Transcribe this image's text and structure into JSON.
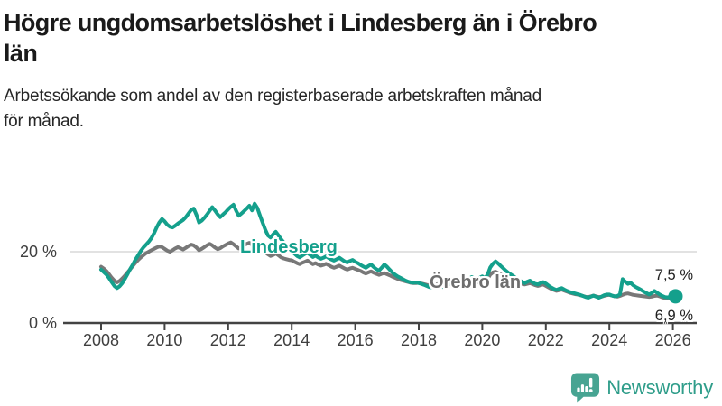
{
  "header": {
    "title_line1": "Högre ungdomsarbetslöshet i Lindesberg än i Örebro",
    "title_line2": "län",
    "subtitle_line1": "Arbetssökande som andel av den registerbaserade arbetskraften månad",
    "subtitle_line2": "för månad."
  },
  "footer": {
    "brand": "Newsworthy",
    "brand_color": "#2f9d8a",
    "icon_color": "#47a492",
    "icon_name": "newsworthy-speech-bubble-barchart-icon"
  },
  "chart_data": {
    "type": "line",
    "unit": "%",
    "frequency": "monthly",
    "start": "2008-01",
    "end": "2026-02",
    "grid": "y-gridline at 20% only",
    "axis_color": "#434343",
    "grid_color": "#d9d9d9",
    "ylim": [
      0,
      35
    ],
    "x_ticks": [
      "2008",
      "2010",
      "2012",
      "2014",
      "2016",
      "2018",
      "2020",
      "2022",
      "2024",
      "2026"
    ],
    "y_ticks": [
      {
        "value": 0,
        "label": "0 %"
      },
      {
        "value": 20,
        "label": "20 %"
      }
    ],
    "legend_position": "labels inline on lines",
    "series": [
      {
        "name": "Lindesberg",
        "label": "Lindesberg",
        "color": "#14a08c",
        "end_value": 7.5,
        "end_label": "7,5 %",
        "end_marker": "dot",
        "values": [
          15.0,
          14.3,
          13.6,
          12.6,
          11.5,
          10.4,
          9.8,
          10.3,
          11.2,
          12.4,
          13.7,
          15.2,
          16.4,
          17.8,
          19.0,
          20.2,
          21.2,
          22.0,
          22.8,
          23.8,
          25.2,
          26.8,
          28.2,
          29.2,
          28.5,
          27.6,
          27.0,
          26.8,
          27.3,
          27.9,
          28.4,
          28.9,
          29.7,
          30.7,
          31.7,
          32.1,
          30.4,
          28.2,
          28.7,
          29.5,
          30.4,
          31.5,
          32.5,
          31.6,
          30.5,
          29.7,
          30.4,
          31.1,
          31.9,
          32.6,
          33.2,
          31.5,
          30.1,
          30.7,
          31.4,
          32.1,
          32.9,
          31.6,
          33.5,
          32.3,
          30.2,
          28.2,
          26.2,
          24.6,
          24.0,
          24.9,
          25.6,
          24.6,
          23.5,
          22.6,
          21.8,
          21.0,
          20.3,
          19.5,
          18.8,
          18.4,
          18.9,
          19.4,
          19.7,
          19.1,
          18.5,
          18.9,
          18.4,
          18.0,
          18.3,
          18.7,
          18.2,
          17.8,
          17.5,
          17.9,
          18.3,
          17.8,
          17.3,
          17.0,
          17.4,
          17.7,
          17.2,
          16.8,
          16.3,
          15.9,
          15.5,
          16.0,
          16.4,
          15.7,
          15.1,
          14.7,
          15.5,
          16.4,
          15.8,
          15.0,
          14.2,
          13.6,
          13.1,
          12.7,
          12.3,
          11.9,
          11.6,
          11.4,
          11.3,
          11.4,
          11.2,
          11.0,
          10.7,
          10.4,
          10.1,
          10.0,
          10.3,
          10.6,
          10.3,
          10.1,
          10.5,
          10.9,
          11.1,
          11.5,
          11.9,
          11.5,
          11.2,
          11.7,
          12.1,
          12.5,
          12.9,
          12.5,
          12.1,
          12.7,
          13.1,
          12.5,
          13.6,
          15.6,
          16.6,
          17.3,
          16.7,
          16.0,
          15.3,
          14.6,
          14.0,
          13.5,
          13.0,
          12.5,
          12.0,
          11.6,
          11.2,
          11.6,
          11.9,
          11.4,
          11.0,
          10.8,
          11.2,
          11.5,
          11.1,
          10.5,
          10.0,
          9.6,
          9.3,
          9.6,
          9.8,
          9.4,
          9.0,
          8.7,
          8.5,
          8.3,
          8.1,
          7.9,
          7.6,
          7.3,
          7.1,
          7.4,
          7.7,
          7.4,
          7.1,
          7.4,
          7.8,
          8.0,
          8.0,
          7.7,
          7.5,
          7.6,
          8.0,
          12.3,
          11.6,
          11.0,
          11.3,
          10.6,
          10.1,
          9.7,
          9.3,
          8.8,
          8.4,
          8.0,
          8.4,
          9.0,
          8.5,
          8.0,
          7.6,
          7.3,
          7.2,
          7.4,
          7.6,
          7.5
        ]
      },
      {
        "name": "Örebro län",
        "label": "Örebro län",
        "color": "#787878",
        "end_value": 6.9,
        "end_label": "6,9 %",
        "end_marker": "none",
        "values": [
          15.8,
          15.3,
          14.6,
          13.7,
          12.7,
          11.9,
          11.4,
          11.8,
          12.5,
          13.3,
          14.2,
          15.1,
          16.0,
          16.9,
          17.7,
          18.4,
          19.0,
          19.6,
          20.0,
          20.4,
          20.8,
          21.2,
          21.5,
          21.3,
          20.8,
          20.3,
          20.0,
          20.4,
          20.9,
          21.3,
          21.0,
          20.6,
          21.1,
          21.6,
          22.0,
          21.8,
          21.2,
          20.4,
          20.8,
          21.3,
          21.8,
          22.2,
          21.8,
          21.2,
          20.7,
          21.0,
          21.5,
          21.9,
          22.3,
          22.6,
          22.1,
          21.5,
          20.9,
          21.3,
          21.8,
          22.2,
          22.5,
          21.9,
          21.4,
          21.7,
          21.2,
          20.6,
          19.9,
          19.3,
          18.8,
          19.1,
          19.5,
          19.0,
          18.4,
          18.1,
          17.9,
          17.7,
          17.6,
          17.2,
          16.8,
          16.5,
          16.9,
          17.2,
          17.5,
          17.0,
          16.5,
          16.8,
          16.4,
          16.1,
          16.3,
          16.6,
          16.2,
          15.8,
          15.5,
          15.8,
          16.1,
          15.7,
          15.3,
          15.0,
          15.3,
          15.5,
          15.2,
          14.9,
          14.6,
          14.2,
          13.9,
          14.2,
          14.5,
          14.1,
          13.8,
          13.5,
          13.8,
          14.0,
          13.7,
          13.4,
          13.0,
          12.7,
          12.4,
          12.1,
          11.9,
          11.7,
          11.5,
          11.3,
          11.2,
          11.2,
          11.3,
          11.1,
          10.9,
          10.7,
          10.6,
          10.5,
          10.7,
          10.9,
          10.7,
          10.5,
          10.7,
          10.9,
          11.0,
          11.2,
          11.4,
          11.2,
          11.0,
          11.3,
          11.5,
          11.7,
          11.8,
          11.6,
          11.4,
          11.6,
          11.8,
          11.5,
          12.3,
          13.6,
          14.2,
          14.4,
          14.0,
          13.6,
          13.2,
          12.8,
          12.4,
          12.1,
          11.8,
          11.5,
          11.2,
          11.0,
          10.8,
          11.0,
          11.2,
          10.9,
          10.6,
          10.4,
          10.6,
          10.8,
          10.4,
          10.0,
          9.6,
          9.3,
          9.0,
          9.2,
          9.4,
          9.1,
          8.8,
          8.5,
          8.3,
          8.1,
          8.0,
          7.8,
          7.6,
          7.4,
          7.3,
          7.5,
          7.7,
          7.5,
          7.3,
          7.4,
          7.6,
          7.8,
          7.9,
          7.7,
          7.5,
          7.4,
          7.6,
          7.9,
          8.2,
          8.3,
          8.1,
          7.9,
          7.8,
          7.7,
          7.6,
          7.5,
          7.4,
          7.3,
          7.4,
          7.6,
          7.7,
          7.5,
          7.2,
          7.0,
          6.9,
          6.8,
          6.9,
          6.9
        ]
      }
    ]
  }
}
